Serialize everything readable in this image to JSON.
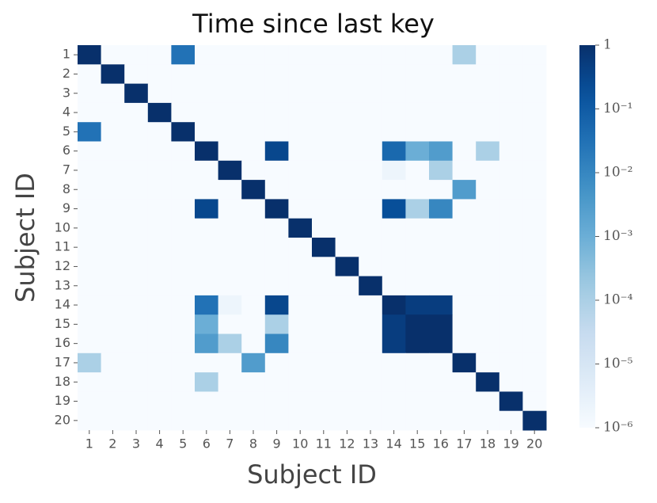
{
  "chart_data": {
    "type": "heatmap",
    "title": "Time since last key",
    "xlabel": "Subject ID",
    "ylabel": "Subject ID",
    "x_categories": [
      "1",
      "2",
      "3",
      "4",
      "5",
      "6",
      "7",
      "8",
      "9",
      "10",
      "11",
      "12",
      "13",
      "14",
      "15",
      "16",
      "17",
      "18",
      "19",
      "20"
    ],
    "y_categories": [
      "1",
      "2",
      "3",
      "4",
      "5",
      "6",
      "7",
      "8",
      "9",
      "10",
      "11",
      "12",
      "13",
      "14",
      "15",
      "16",
      "17",
      "18",
      "19",
      "20"
    ],
    "colormap": "Blues",
    "log_scale": true,
    "colorbar_lim": [
      1e-06,
      1
    ],
    "colorbar_ticks": [
      1,
      {
        "value": 0.1,
        "label": "10⁻¹"
      },
      {
        "value": 0.01,
        "label": "10⁻²"
      },
      {
        "value": 0.001,
        "label": "10⁻³"
      },
      {
        "value": 0.0001,
        "label": "10⁻⁴"
      },
      {
        "value": 1e-05,
        "label": "10⁻⁵"
      },
      {
        "value": 1e-06,
        "label": "10⁻⁶"
      }
    ],
    "z": [
      [
        1,
        1e-06,
        1e-06,
        1e-06,
        0.03,
        1e-06,
        1e-06,
        1e-06,
        1e-06,
        1e-06,
        1e-06,
        1e-06,
        1e-06,
        1e-06,
        1e-06,
        1e-06,
        0.0001,
        1e-06,
        1e-06,
        1e-06
      ],
      [
        1e-06,
        1,
        1e-06,
        1e-06,
        1e-06,
        1e-06,
        1e-06,
        1e-06,
        1e-06,
        1e-06,
        1e-06,
        1e-06,
        1e-06,
        1e-06,
        1e-06,
        1e-06,
        1e-06,
        1e-06,
        1e-06,
        1e-06
      ],
      [
        1e-06,
        1e-06,
        1,
        1e-06,
        1e-06,
        1e-06,
        1e-06,
        1e-06,
        1e-06,
        1e-06,
        1e-06,
        1e-06,
        1e-06,
        1e-06,
        1e-06,
        1e-06,
        1e-06,
        1e-06,
        1e-06,
        1e-06
      ],
      [
        1e-06,
        1e-06,
        1e-06,
        1,
        1e-06,
        1e-06,
        1e-06,
        1e-06,
        1e-06,
        1e-06,
        1e-06,
        1e-06,
        1e-06,
        1e-06,
        1e-06,
        1e-06,
        1e-06,
        1e-06,
        1e-06,
        1e-06
      ],
      [
        0.03,
        1e-06,
        1e-06,
        1e-06,
        1,
        1e-06,
        1e-06,
        1e-06,
        1e-06,
        1e-06,
        1e-06,
        1e-06,
        1e-06,
        1e-06,
        1e-06,
        1e-06,
        1e-06,
        1e-06,
        1e-06,
        1e-06
      ],
      [
        1e-06,
        1e-06,
        1e-06,
        1e-06,
        1e-06,
        1,
        1e-06,
        1e-06,
        0.3,
        1e-06,
        1e-06,
        1e-06,
        1e-06,
        0.05,
        0.001,
        0.003,
        1e-06,
        0.0001,
        1e-06,
        1e-06
      ],
      [
        1e-06,
        1e-06,
        1e-06,
        1e-06,
        1e-06,
        1e-06,
        1,
        1e-06,
        1e-06,
        1e-06,
        1e-06,
        1e-06,
        1e-06,
        2e-06,
        1e-06,
        0.0001,
        1e-06,
        1e-06,
        1e-06,
        1e-06
      ],
      [
        1e-06,
        1e-06,
        1e-06,
        1e-06,
        1e-06,
        1e-06,
        1e-06,
        1,
        1e-06,
        1e-06,
        1e-06,
        1e-06,
        1e-06,
        1e-06,
        1e-06,
        1e-06,
        0.003,
        1e-06,
        1e-06,
        1e-06
      ],
      [
        1e-06,
        1e-06,
        1e-06,
        1e-06,
        1e-06,
        0.3,
        1e-06,
        1e-06,
        1,
        1e-06,
        1e-06,
        1e-06,
        1e-06,
        0.2,
        0.0001,
        0.01,
        1e-06,
        1e-06,
        1e-06,
        1e-06
      ],
      [
        1e-06,
        1e-06,
        1e-06,
        1e-06,
        1e-06,
        1e-06,
        1e-06,
        1e-06,
        1e-06,
        1,
        1e-06,
        1e-06,
        1e-06,
        1e-06,
        1e-06,
        1e-06,
        1e-06,
        1e-06,
        1e-06,
        1e-06
      ],
      [
        1e-06,
        1e-06,
        1e-06,
        1e-06,
        1e-06,
        1e-06,
        1e-06,
        1e-06,
        1e-06,
        1e-06,
        1,
        1e-06,
        1e-06,
        1e-06,
        1e-06,
        1e-06,
        1e-06,
        1e-06,
        1e-06,
        1e-06
      ],
      [
        1e-06,
        1e-06,
        1e-06,
        1e-06,
        1e-06,
        1e-06,
        1e-06,
        1e-06,
        1e-06,
        1e-06,
        1e-06,
        1,
        1e-06,
        1e-06,
        1e-06,
        1e-06,
        1e-06,
        1e-06,
        1e-06,
        1e-06
      ],
      [
        1e-06,
        1e-06,
        1e-06,
        1e-06,
        1e-06,
        1e-06,
        1e-06,
        1e-06,
        1e-06,
        1e-06,
        1e-06,
        1e-06,
        1,
        1e-06,
        1e-06,
        1e-06,
        1e-06,
        1e-06,
        1e-06,
        1e-06
      ],
      [
        1e-06,
        1e-06,
        1e-06,
        1e-06,
        1e-06,
        0.03,
        2e-06,
        1e-06,
        0.3,
        1e-06,
        1e-06,
        1e-06,
        1e-06,
        1,
        0.5,
        0.5,
        1e-06,
        1e-06,
        1e-06,
        1e-06
      ],
      [
        1e-06,
        1e-06,
        1e-06,
        1e-06,
        1e-06,
        0.001,
        1e-06,
        1e-06,
        0.0001,
        1e-06,
        1e-06,
        1e-06,
        1e-06,
        0.5,
        1,
        1,
        1e-06,
        1e-06,
        1e-06,
        1e-06
      ],
      [
        1e-06,
        1e-06,
        1e-06,
        1e-06,
        1e-06,
        0.003,
        0.0001,
        1e-06,
        0.01,
        1e-06,
        1e-06,
        1e-06,
        1e-06,
        0.5,
        1,
        1,
        1e-06,
        1e-06,
        1e-06,
        1e-06
      ],
      [
        0.0001,
        1e-06,
        1e-06,
        1e-06,
        1e-06,
        1e-06,
        1e-06,
        0.003,
        1e-06,
        1e-06,
        1e-06,
        1e-06,
        1e-06,
        1e-06,
        1e-06,
        1e-06,
        1,
        1e-06,
        1e-06,
        1e-06
      ],
      [
        1e-06,
        1e-06,
        1e-06,
        1e-06,
        1e-06,
        0.0001,
        1e-06,
        1e-06,
        1e-06,
        1e-06,
        1e-06,
        1e-06,
        1e-06,
        1e-06,
        1e-06,
        1e-06,
        1e-06,
        1,
        1e-06,
        1e-06
      ],
      [
        1e-06,
        1e-06,
        1e-06,
        1e-06,
        1e-06,
        1e-06,
        1e-06,
        1e-06,
        1e-06,
        1e-06,
        1e-06,
        1e-06,
        1e-06,
        1e-06,
        1e-06,
        1e-06,
        1e-06,
        1e-06,
        1,
        1e-06
      ],
      [
        1e-06,
        1e-06,
        1e-06,
        1e-06,
        1e-06,
        1e-06,
        1e-06,
        1e-06,
        1e-06,
        1e-06,
        1e-06,
        1e-06,
        1e-06,
        1e-06,
        1e-06,
        1e-06,
        1e-06,
        1e-06,
        1e-06,
        1
      ]
    ]
  }
}
